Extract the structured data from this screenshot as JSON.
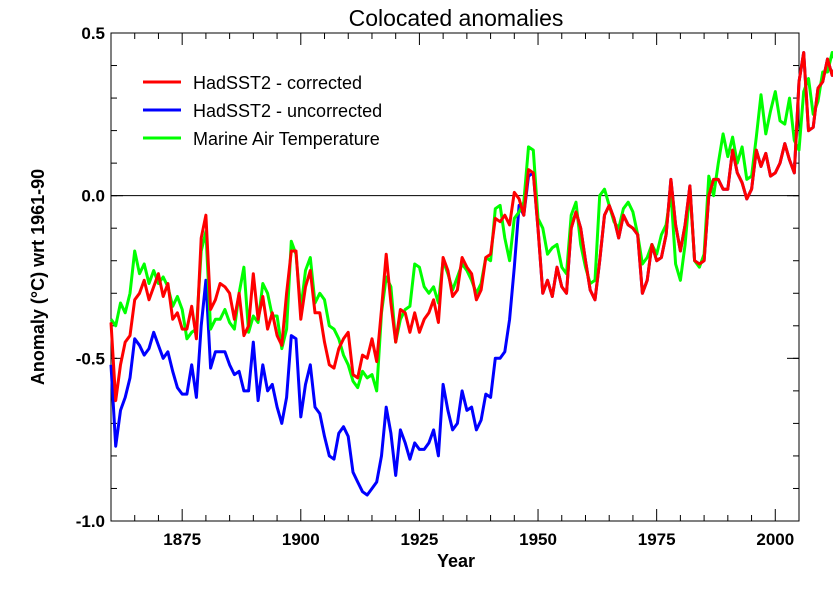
{
  "chart_data": {
    "type": "line",
    "title": "Colocated anomalies",
    "xlabel": "Year",
    "ylabel": "Anomaly (°C) wrt 1961-90",
    "xlim": [
      1860,
      2005
    ],
    "ylim": [
      -1.0,
      0.5
    ],
    "x_ticks": [
      1875,
      1900,
      1925,
      1950,
      1975,
      2000
    ],
    "x_tick_labels": [
      "1875",
      "1900",
      "1925",
      "1950",
      "1975",
      "2000"
    ],
    "y_ticks": [
      0.5,
      0.0,
      -0.5,
      -1.0
    ],
    "y_tick_labels": [
      "0.5",
      "0.0",
      "-0.5",
      "-1.0"
    ],
    "zero_line": true,
    "grid": false,
    "legend_position": "top-left",
    "x_start": 1860,
    "series": [
      {
        "name": "HadSST2 - corrected",
        "color": "#ff0000",
        "values": [
          -0.39,
          -0.63,
          -0.52,
          -0.45,
          -0.43,
          -0.32,
          -0.3,
          -0.26,
          -0.32,
          -0.28,
          -0.24,
          -0.31,
          -0.27,
          -0.38,
          -0.36,
          -0.41,
          -0.41,
          -0.34,
          -0.44,
          -0.13,
          -0.06,
          -0.35,
          -0.32,
          -0.27,
          -0.28,
          -0.3,
          -0.38,
          -0.3,
          -0.43,
          -0.4,
          -0.24,
          -0.38,
          -0.31,
          -0.41,
          -0.36,
          -0.43,
          -0.46,
          -0.3,
          -0.17,
          -0.17,
          -0.38,
          -0.28,
          -0.23,
          -0.36,
          -0.36,
          -0.45,
          -0.52,
          -0.53,
          -0.47,
          -0.44,
          -0.42,
          -0.55,
          -0.56,
          -0.49,
          -0.5,
          -0.44,
          -0.51,
          -0.35,
          -0.18,
          -0.33,
          -0.45,
          -0.35,
          -0.36,
          -0.42,
          -0.36,
          -0.42,
          -0.38,
          -0.36,
          -0.32,
          -0.39,
          -0.19,
          -0.23,
          -0.31,
          -0.29,
          -0.19,
          -0.22,
          -0.24,
          -0.32,
          -0.29,
          -0.19,
          -0.18,
          -0.07,
          -0.08,
          -0.06,
          -0.09,
          0.01,
          -0.01,
          -0.06,
          0.08,
          0.07,
          -0.1,
          -0.3,
          -0.26,
          -0.31,
          -0.22,
          -0.28,
          -0.3,
          -0.1,
          -0.05,
          -0.1,
          -0.2,
          -0.29,
          -0.32,
          -0.2,
          -0.06,
          -0.03,
          -0.07,
          -0.13,
          -0.06,
          -0.09,
          -0.1,
          -0.12,
          -0.3,
          -0.26,
          -0.15,
          -0.2,
          -0.19,
          -0.12,
          0.05,
          -0.09,
          -0.17,
          -0.09,
          0.03,
          -0.2,
          -0.21,
          -0.2,
          0.0,
          0.05,
          0.05,
          0.02,
          0.02,
          0.14,
          0.07,
          0.04,
          -0.01,
          0.02,
          0.14,
          0.09,
          0.13,
          0.06,
          0.07,
          0.1,
          0.16,
          0.11,
          0.07,
          0.35,
          0.44,
          0.2,
          0.21,
          0.33,
          0.35,
          0.42,
          0.37,
          0.41
        ]
      },
      {
        "name": "HadSST2 - uncorrected",
        "color": "#0000ff",
        "values": [
          -0.52,
          -0.77,
          -0.66,
          -0.62,
          -0.56,
          -0.44,
          -0.46,
          -0.49,
          -0.47,
          -0.42,
          -0.46,
          -0.5,
          -0.48,
          -0.54,
          -0.59,
          -0.61,
          -0.61,
          -0.52,
          -0.62,
          -0.4,
          -0.26,
          -0.53,
          -0.48,
          -0.48,
          -0.48,
          -0.52,
          -0.55,
          -0.54,
          -0.6,
          -0.6,
          -0.45,
          -0.63,
          -0.52,
          -0.6,
          -0.58,
          -0.65,
          -0.7,
          -0.62,
          -0.43,
          -0.44,
          -0.68,
          -0.58,
          -0.52,
          -0.65,
          -0.67,
          -0.74,
          -0.8,
          -0.81,
          -0.73,
          -0.71,
          -0.74,
          -0.85,
          -0.88,
          -0.91,
          -0.92,
          -0.9,
          -0.88,
          -0.8,
          -0.65,
          -0.73,
          -0.86,
          -0.72,
          -0.76,
          -0.81,
          -0.76,
          -0.78,
          -0.78,
          -0.76,
          -0.72,
          -0.8,
          -0.58,
          -0.66,
          -0.72,
          -0.7,
          -0.6,
          -0.66,
          -0.65,
          -0.72,
          -0.69,
          -0.61,
          -0.62,
          -0.5,
          -0.5,
          -0.48,
          -0.38,
          -0.22,
          -0.03,
          -0.06,
          0.06,
          0.07,
          -0.1,
          -0.3,
          -0.26,
          -0.31,
          -0.22,
          -0.28,
          -0.3,
          -0.1,
          -0.05,
          -0.1,
          -0.2,
          -0.29,
          -0.32,
          -0.2,
          -0.06,
          -0.03,
          -0.07,
          -0.13,
          -0.06,
          -0.09,
          -0.1,
          -0.12,
          -0.3,
          -0.26,
          -0.15,
          -0.2,
          -0.19,
          -0.12,
          0.05,
          -0.09,
          -0.17,
          -0.09,
          0.03,
          -0.2,
          -0.21,
          -0.2,
          0.0,
          0.05,
          0.05,
          0.02,
          0.02,
          0.14,
          0.07,
          0.04,
          -0.01,
          0.02,
          0.14,
          0.09,
          0.13,
          0.06,
          0.07,
          0.1,
          0.16,
          0.11,
          0.07,
          0.35,
          0.44,
          0.2,
          0.21,
          0.33,
          0.35,
          0.42,
          0.37,
          0.41
        ]
      },
      {
        "name": "Marine Air Temperature",
        "color": "#00ff00",
        "values": [
          -0.38,
          -0.4,
          -0.33,
          -0.36,
          -0.3,
          -0.17,
          -0.24,
          -0.21,
          -0.27,
          -0.23,
          -0.27,
          -0.25,
          -0.28,
          -0.34,
          -0.31,
          -0.35,
          -0.44,
          -0.42,
          -0.41,
          -0.17,
          -0.11,
          -0.41,
          -0.38,
          -0.38,
          -0.35,
          -0.39,
          -0.41,
          -0.3,
          -0.22,
          -0.42,
          -0.37,
          -0.39,
          -0.27,
          -0.3,
          -0.37,
          -0.37,
          -0.47,
          -0.41,
          -0.14,
          -0.18,
          -0.35,
          -0.23,
          -0.19,
          -0.33,
          -0.3,
          -0.32,
          -0.4,
          -0.41,
          -0.44,
          -0.49,
          -0.52,
          -0.57,
          -0.59,
          -0.54,
          -0.56,
          -0.55,
          -0.6,
          -0.36,
          -0.25,
          -0.28,
          -0.45,
          -0.38,
          -0.35,
          -0.34,
          -0.21,
          -0.22,
          -0.28,
          -0.3,
          -0.28,
          -0.33,
          -0.2,
          -0.24,
          -0.29,
          -0.25,
          -0.21,
          -0.23,
          -0.26,
          -0.3,
          -0.27,
          -0.19,
          -0.2,
          -0.04,
          -0.03,
          -0.13,
          -0.2,
          -0.07,
          -0.05,
          -0.02,
          0.15,
          0.14,
          -0.07,
          -0.1,
          -0.18,
          -0.16,
          -0.15,
          -0.22,
          -0.24,
          -0.06,
          -0.02,
          -0.15,
          -0.22,
          -0.27,
          -0.26,
          0.0,
          0.02,
          -0.03,
          -0.08,
          -0.1,
          -0.04,
          -0.02,
          -0.05,
          -0.12,
          -0.21,
          -0.19,
          -0.15,
          -0.18,
          -0.12,
          -0.09,
          0.01,
          -0.21,
          -0.26,
          -0.15,
          0.02,
          -0.2,
          -0.22,
          -0.18,
          0.06,
          0.0,
          0.1,
          0.19,
          0.12,
          0.18,
          0.1,
          0.15,
          0.05,
          0.06,
          0.18,
          0.31,
          0.19,
          0.26,
          0.32,
          0.23,
          0.22,
          0.3,
          0.17,
          0.14,
          0.32,
          0.36,
          0.25,
          0.29,
          0.38,
          0.38,
          0.44,
          0.4,
          0.43
        ]
      }
    ]
  }
}
